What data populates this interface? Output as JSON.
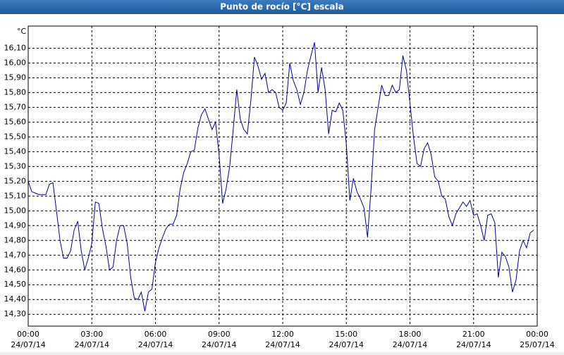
{
  "chart_data": {
    "type": "line",
    "title": "Punto de rocío [°C] escala",
    "ylabel": "°C",
    "color": "#0000a0",
    "grid": true,
    "xlim": [
      0,
      1440
    ],
    "ylim": [
      14.22,
      16.25
    ],
    "xticks": [
      {
        "value": 0,
        "label": [
          "00:00",
          "24/07/14"
        ]
      },
      {
        "value": 180,
        "label": [
          "03:00",
          "24/07/14"
        ]
      },
      {
        "value": 360,
        "label": [
          "06:00",
          "24/07/14"
        ]
      },
      {
        "value": 540,
        "label": [
          "09:00",
          "24/07/14"
        ]
      },
      {
        "value": 720,
        "label": [
          "12:00",
          "24/07/14"
        ]
      },
      {
        "value": 900,
        "label": [
          "15:00",
          "24/07/14"
        ]
      },
      {
        "value": 1080,
        "label": [
          "18:00",
          "24/07/14"
        ]
      },
      {
        "value": 1260,
        "label": [
          "21:00",
          "24/07/14"
        ]
      },
      {
        "value": 1440,
        "label": [
          "00:00",
          "25/07/14"
        ]
      }
    ],
    "yticks": [
      {
        "value": 14.3,
        "label": "14,30"
      },
      {
        "value": 14.4,
        "label": "14,40"
      },
      {
        "value": 14.5,
        "label": "14,50"
      },
      {
        "value": 14.6,
        "label": "14,60"
      },
      {
        "value": 14.7,
        "label": "14,70"
      },
      {
        "value": 14.8,
        "label": "14,80"
      },
      {
        "value": 14.9,
        "label": "14,90"
      },
      {
        "value": 15.0,
        "label": "15,00"
      },
      {
        "value": 15.1,
        "label": "15,10"
      },
      {
        "value": 15.2,
        "label": "15,20"
      },
      {
        "value": 15.3,
        "label": "15,30"
      },
      {
        "value": 15.4,
        "label": "15,40"
      },
      {
        "value": 15.5,
        "label": "15,50"
      },
      {
        "value": 15.6,
        "label": "15,60"
      },
      {
        "value": 15.7,
        "label": "15,70"
      },
      {
        "value": 15.8,
        "label": "15,80"
      },
      {
        "value": 15.9,
        "label": "15,90"
      },
      {
        "value": 16.0,
        "label": "16,00"
      },
      {
        "value": 16.1,
        "label": "16,10"
      }
    ],
    "x": [
      0,
      10,
      20,
      30,
      40,
      50,
      60,
      70,
      80,
      90,
      100,
      110,
      120,
      130,
      140,
      150,
      160,
      170,
      180,
      190,
      200,
      210,
      220,
      230,
      240,
      250,
      260,
      270,
      280,
      290,
      300,
      310,
      320,
      330,
      340,
      350,
      360,
      370,
      380,
      390,
      400,
      410,
      420,
      430,
      440,
      450,
      460,
      470,
      480,
      490,
      500,
      510,
      520,
      530,
      540,
      550,
      560,
      570,
      580,
      590,
      600,
      610,
      620,
      630,
      640,
      650,
      660,
      670,
      680,
      690,
      700,
      710,
      720,
      730,
      740,
      750,
      760,
      770,
      780,
      790,
      800,
      810,
      820,
      830,
      840,
      850,
      860,
      870,
      880,
      890,
      900,
      910,
      920,
      930,
      940,
      950,
      960,
      970,
      980,
      990,
      1000,
      1010,
      1020,
      1030,
      1040,
      1050,
      1060,
      1070,
      1080,
      1090,
      1100,
      1110,
      1120,
      1130,
      1140,
      1150,
      1160,
      1170,
      1180,
      1190,
      1200,
      1210,
      1220,
      1230,
      1240,
      1250,
      1260,
      1270,
      1280,
      1290,
      1300,
      1310,
      1320,
      1330,
      1340,
      1350,
      1360,
      1370,
      1380,
      1390,
      1400,
      1410,
      1420,
      1430
    ],
    "values": [
      15.2,
      15.13,
      15.12,
      15.11,
      15.11,
      15.11,
      15.18,
      15.19,
      15.0,
      14.8,
      14.68,
      14.68,
      14.73,
      14.87,
      14.93,
      14.73,
      14.6,
      14.68,
      14.78,
      15.06,
      15.05,
      14.88,
      14.76,
      14.6,
      14.62,
      14.8,
      14.9,
      14.9,
      14.78,
      14.55,
      14.41,
      14.4,
      14.45,
      14.32,
      14.45,
      14.47,
      14.65,
      14.75,
      14.82,
      14.88,
      14.91,
      14.91,
      14.97,
      15.15,
      15.26,
      15.32,
      15.4,
      15.41,
      15.56,
      15.65,
      15.69,
      15.62,
      15.55,
      15.6,
      15.38,
      15.05,
      15.15,
      15.3,
      15.55,
      15.82,
      15.62,
      15.55,
      15.52,
      15.75,
      16.04,
      15.98,
      15.89,
      15.93,
      15.8,
      15.82,
      15.8,
      15.7,
      15.68,
      15.73,
      16.0,
      15.88,
      15.82,
      15.72,
      15.8,
      15.95,
      16.05,
      16.14,
      15.8,
      15.97,
      15.82,
      15.52,
      15.68,
      15.67,
      15.73,
      15.68,
      15.45,
      15.07,
      15.22,
      15.13,
      15.08,
      15.02,
      14.82,
      15.15,
      15.55,
      15.7,
      15.85,
      15.78,
      15.78,
      15.85,
      15.8,
      15.82,
      16.05,
      15.95,
      15.73,
      15.5,
      15.32,
      15.3,
      15.42,
      15.46,
      15.38,
      15.23,
      15.2,
      15.1,
      15.08,
      14.96,
      14.9,
      14.98,
      15.02,
      15.06,
      15.03,
      15.07,
      14.97,
      14.98,
      14.9,
      14.8,
      14.97,
      14.98,
      14.92,
      14.55,
      14.72,
      14.69,
      14.62,
      14.45,
      14.53,
      14.73,
      14.8,
      14.75,
      14.85,
      14.87
    ]
  }
}
